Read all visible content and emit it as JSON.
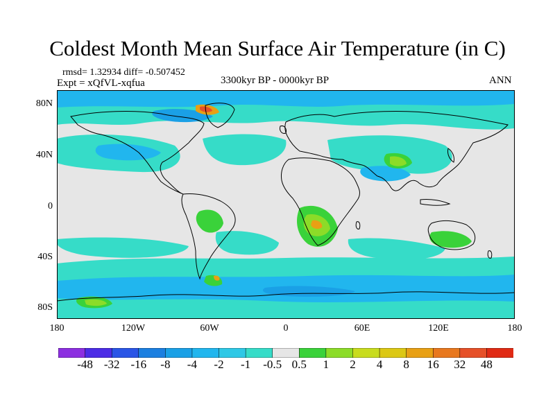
{
  "title": "Coldest Month Mean Surface Air Temperature (in C)",
  "stats_line": "rmsd= 1.32934 diff= -0.507452",
  "experiment_line": "Expt = xQfVL-xqfua",
  "period_line": "3300kyr BP - 0000kyr BP",
  "season_line": "ANN",
  "lat_ticks": [
    "80N",
    "40N",
    "0",
    "40S",
    "80S"
  ],
  "lon_ticks": [
    "180",
    "120W",
    "60W",
    "0",
    "60E",
    "120E",
    "180"
  ],
  "colorbar": {
    "labels": [
      "-48",
      "-32",
      "-16",
      "-8",
      "-4",
      "-2",
      "-1",
      "-0.5",
      "0.5",
      "1",
      "2",
      "4",
      "8",
      "16",
      "32",
      "48"
    ],
    "colors": [
      "#8c2fe0",
      "#4c2ce6",
      "#2a55e6",
      "#1b7fe0",
      "#1aa0e6",
      "#21b6ee",
      "#2ec8e6",
      "#36dcc8",
      "#e6e6e6",
      "#3ad23a",
      "#8cdc28",
      "#c8dc1e",
      "#dcc814",
      "#e8a014",
      "#e8781e",
      "#e65028",
      "#e02a14"
    ]
  },
  "palette": {
    "background": "#e6e6e6",
    "coastline": "#000000",
    "cool_1": "#36dcc8",
    "cool_2": "#21b6ee",
    "cool_3": "#1aa0e6",
    "warm_1": "#3ad23a",
    "warm_2": "#8cdc28",
    "warm_3": "#c8dc1e",
    "warm_4": "#e8a014",
    "warm_5": "#e65028"
  }
}
